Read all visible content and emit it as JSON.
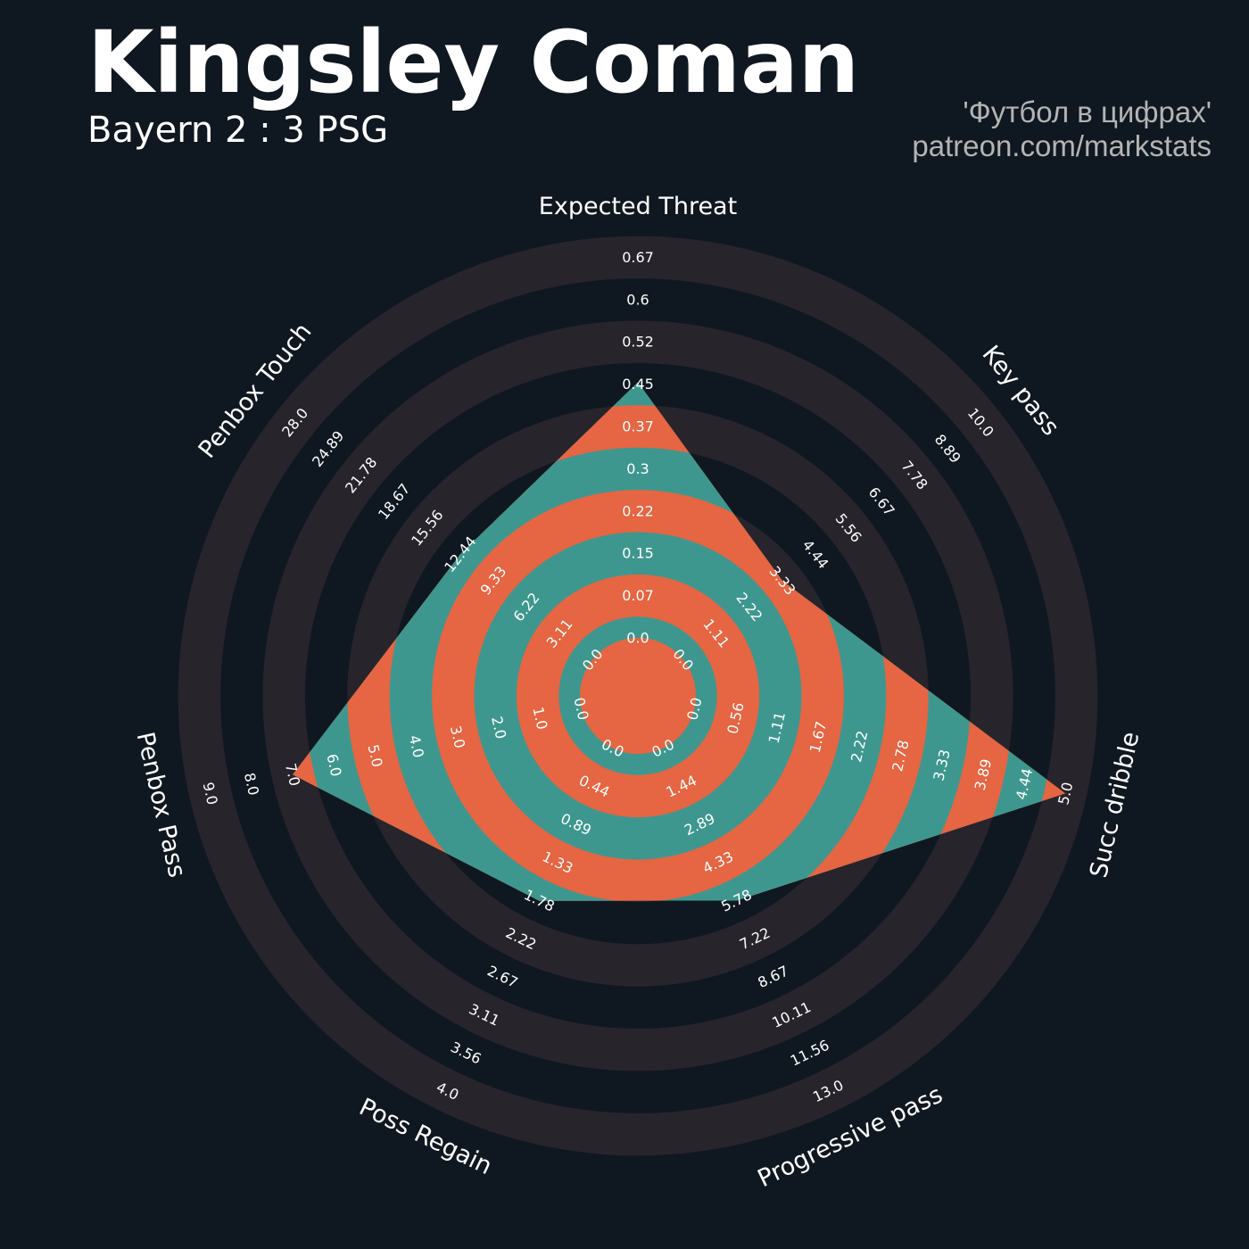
{
  "header": {
    "title": "Kingsley Coman",
    "subtitle": "Bayern 2 : 3 PSG",
    "credit_line1": "'Футбол в цифрах'",
    "credit_line2": "patreon.com/markstats"
  },
  "colors": {
    "background": "#0f1820",
    "ring_dark": "#28242b",
    "player_teal": "#3e978f",
    "player_orange": "#e66542",
    "text": "#ffffff",
    "credit": "#b4b4b4"
  },
  "chart_data": {
    "type": "radar",
    "params": [
      "Expected Threat",
      "Key pass",
      "Succ dribble",
      "Progressive pass",
      "Poss Regain",
      "Penbox Pass",
      "Penbox Touch"
    ],
    "values": [
      0.45,
      3.33,
      5.0,
      5.78,
      1.78,
      7.0,
      12.44
    ],
    "mins": [
      0.0,
      0.0,
      0.0,
      0.0,
      0.0,
      0.0,
      0.0
    ],
    "maxs": [
      0.67,
      10.0,
      5.0,
      13.0,
      4.0,
      9.0,
      28.0
    ],
    "tick_labels": [
      [
        "0.0",
        "0.07",
        "0.15",
        "0.22",
        "0.3",
        "0.37",
        "0.45",
        "0.52",
        "0.6",
        "0.67"
      ],
      [
        "0.0",
        "1.11",
        "2.22",
        "3.33",
        "4.44",
        "5.56",
        "6.67",
        "7.78",
        "8.89",
        "10.0"
      ],
      [
        "0.0",
        "0.56",
        "1.11",
        "1.67",
        "2.22",
        "2.78",
        "3.33",
        "3.89",
        "4.44",
        "5.0"
      ],
      [
        "0.0",
        "1.44",
        "2.89",
        "4.33",
        "5.78",
        "7.22",
        "8.67",
        "10.11",
        "11.56",
        "13.0"
      ],
      [
        "0.0",
        "0.44",
        "0.89",
        "1.33",
        "1.78",
        "2.22",
        "2.67",
        "3.11",
        "3.56",
        "4.0"
      ],
      [
        "0.0",
        "1.0",
        "2.0",
        "3.0",
        "4.0",
        "5.0",
        "6.0",
        "7.0",
        "8.0",
        "9.0"
      ],
      [
        "0.0",
        "3.11",
        "6.22",
        "9.33",
        "12.44",
        "15.56",
        "18.67",
        "21.78",
        "24.89",
        "28.0"
      ]
    ]
  }
}
